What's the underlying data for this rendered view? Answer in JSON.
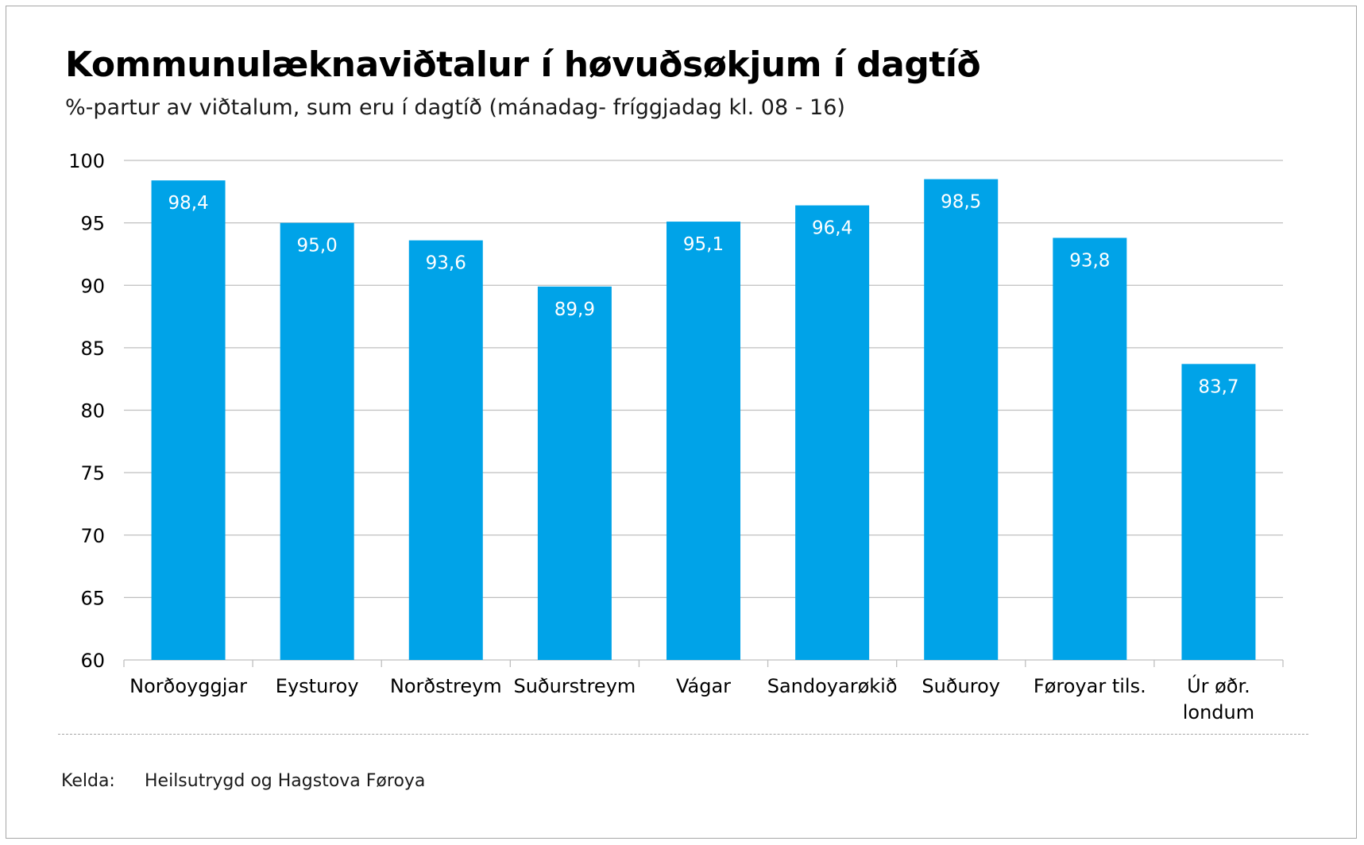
{
  "chart_data": {
    "type": "bar",
    "title": "Kommunulæknaviðtalur í høvuðsøkjum í dagtíð",
    "subtitle": "%-partur av viðtalum, sum eru í dagtíð (mánadag- fríggjadag kl. 08 - 16)",
    "categories": [
      "Norðoyggjar",
      "Eysturoy",
      "Norðstreym",
      "Suðurstreym",
      "Vágar",
      "Sandoyarøkið",
      "Suðuroy",
      "Føroyar tils.",
      "Úr øðr. londum"
    ],
    "category_lines": [
      [
        "Norðoyggjar"
      ],
      [
        "Eysturoy"
      ],
      [
        "Norðstreym"
      ],
      [
        "Suðurstreym"
      ],
      [
        "Vágar"
      ],
      [
        "Sandoyarøkið"
      ],
      [
        "Suðuroy"
      ],
      [
        "Føroyar tils."
      ],
      [
        "Úr øðr.",
        "londum"
      ]
    ],
    "values": [
      98.4,
      95.0,
      93.6,
      89.9,
      95.1,
      96.4,
      98.5,
      93.8,
      83.7
    ],
    "value_labels": [
      "98,4",
      "95,0",
      "93,6",
      "89,9",
      "95,1",
      "96,4",
      "98,5",
      "93,8",
      "83,7"
    ],
    "ylim": [
      60,
      100
    ],
    "yticks": [
      60,
      65,
      70,
      75,
      80,
      85,
      90,
      95,
      100
    ],
    "grid": true,
    "legend": "none",
    "bar_color": "#00a3e8"
  },
  "source": {
    "label": "Kelda:",
    "text": "Heilsutrygd og Hagstova Føroya"
  }
}
